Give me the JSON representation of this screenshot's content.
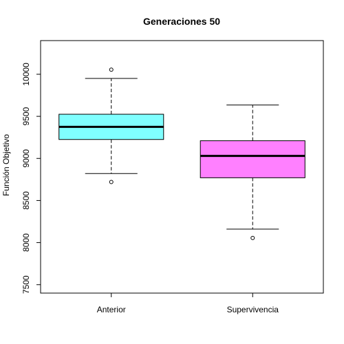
{
  "chart_data": {
    "type": "box",
    "title": "Generaciones 50",
    "xlabel": "",
    "ylabel": "Función Objetivo",
    "ylim": [
      7400,
      10400
    ],
    "yticks": [
      7500,
      8000,
      8500,
      9000,
      9500,
      10000
    ],
    "grid": false,
    "categories": [
      "Anterior",
      "Supervivencia"
    ],
    "boxes": [
      {
        "name": "Anterior",
        "whisker_low": 8820,
        "q1": 9225,
        "median": 9375,
        "q3": 9525,
        "whisker_high": 9950,
        "outliers": [
          8720,
          10055
        ],
        "color": "#80ffff"
      },
      {
        "name": "Supervivencia",
        "whisker_low": 8160,
        "q1": 8770,
        "median": 9030,
        "q3": 9210,
        "whisker_high": 9635,
        "outliers": [
          8055
        ],
        "color": "#ff80ff"
      }
    ]
  }
}
